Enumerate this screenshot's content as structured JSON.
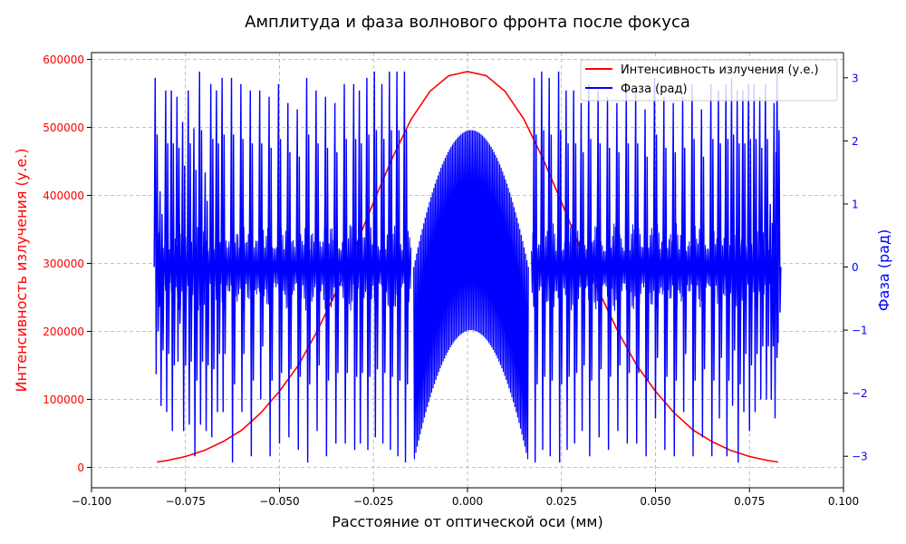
{
  "chart_data": {
    "type": "line",
    "title": "Амплитуда и фаза волнового фронта после фокуса",
    "xlabel": "Расстояние от оптической оси (мм)",
    "ylabel": "Интенсивность излучения (у.е.)",
    "y2label": "Фаза (рад)",
    "xlim": [
      -0.1,
      0.1
    ],
    "ylim": [
      -30000,
      610000
    ],
    "y2lim": [
      -3.5,
      3.4
    ],
    "grid": true,
    "legend_position": "top-right",
    "x_ticks": [
      -0.1,
      -0.075,
      -0.05,
      -0.025,
      0.0,
      0.025,
      0.05,
      0.075,
      0.1
    ],
    "x_tick_labels": [
      "−0.100",
      "−0.075",
      "−0.050",
      "−0.025",
      "0.000",
      "0.025",
      "0.050",
      "0.075",
      "0.100"
    ],
    "y_ticks": [
      0,
      100000,
      200000,
      300000,
      400000,
      500000,
      600000
    ],
    "y_tick_labels": [
      "0",
      "100000",
      "200000",
      "300000",
      "400000",
      "500000",
      "600000"
    ],
    "y2_ticks": [
      -3,
      -2,
      -1,
      0,
      1,
      2,
      3
    ],
    "y2_tick_labels": [
      "−3",
      "−2",
      "−1",
      "0",
      "1",
      "2",
      "3"
    ],
    "x_range_data": [
      -0.0825,
      0.0825
    ],
    "series": [
      {
        "name": "Интенсивность излучения (у.е.)",
        "axis": "left",
        "color": "#ff0000",
        "x": [
          -0.0825,
          -0.08,
          -0.075,
          -0.07,
          -0.065,
          -0.06,
          -0.055,
          -0.05,
          -0.045,
          -0.04,
          -0.035,
          -0.03,
          -0.025,
          -0.02,
          -0.015,
          -0.01,
          -0.005,
          0.0,
          0.005,
          0.01,
          0.015,
          0.02,
          0.025,
          0.03,
          0.035,
          0.04,
          0.045,
          0.05,
          0.055,
          0.06,
          0.065,
          0.07,
          0.075,
          0.08,
          0.0825
        ],
        "values": [
          8000,
          10000,
          16000,
          25000,
          38000,
          55000,
          80000,
          112000,
          150000,
          200000,
          258000,
          322000,
          390000,
          455000,
          512000,
          553000,
          576000,
          582000,
          576000,
          553000,
          512000,
          455000,
          390000,
          322000,
          258000,
          200000,
          150000,
          112000,
          80000,
          55000,
          38000,
          25000,
          16000,
          10000,
          8000
        ]
      },
      {
        "name": "Фаза (рад)",
        "axis": "right",
        "color": "#0000ff",
        "center_envelope": {
          "x_range": [
            -0.0143,
            0.0162
          ],
          "upper_peak": 2.17,
          "upper_edge": 0.0,
          "lower_peak": -1.0,
          "lower_edge": -3.1
        },
        "spikes": [
          {
            "x": -0.0828,
            "top": 3.0,
            "bottom": -1.7
          },
          {
            "x": -0.0815,
            "top": 1.2,
            "bottom": -2.2
          },
          {
            "x": -0.08,
            "top": 2.8,
            "bottom": -2.3
          },
          {
            "x": -0.0785,
            "top": 2.8,
            "bottom": -2.6
          },
          {
            "x": -0.077,
            "top": 2.7,
            "bottom": -1.5
          },
          {
            "x": -0.0755,
            "top": 2.3,
            "bottom": -2.6
          },
          {
            "x": -0.074,
            "top": 2.8,
            "bottom": -2.5
          },
          {
            "x": -0.0725,
            "top": 2.2,
            "bottom": -3.0
          },
          {
            "x": -0.071,
            "top": 3.1,
            "bottom": -2.5
          },
          {
            "x": -0.0695,
            "top": 1.5,
            "bottom": -2.6
          },
          {
            "x": -0.068,
            "top": 2.9,
            "bottom": -2.7
          },
          {
            "x": -0.0665,
            "top": 2.8,
            "bottom": -2.3
          },
          {
            "x": -0.065,
            "top": 3.0,
            "bottom": -2.3
          },
          {
            "x": -0.0625,
            "top": 3.0,
            "bottom": -3.1
          },
          {
            "x": -0.06,
            "top": 2.9,
            "bottom": -2.3
          },
          {
            "x": -0.0575,
            "top": 2.8,
            "bottom": -3.0
          },
          {
            "x": -0.055,
            "top": 2.8,
            "bottom": -2.1
          },
          {
            "x": -0.0525,
            "top": 2.7,
            "bottom": -3.0
          },
          {
            "x": -0.05,
            "top": 2.9,
            "bottom": -2.8
          },
          {
            "x": -0.0475,
            "top": 2.6,
            "bottom": -2.7
          },
          {
            "x": -0.045,
            "top": 2.5,
            "bottom": -2.9
          },
          {
            "x": -0.0425,
            "top": 3.0,
            "bottom": -3.1
          },
          {
            "x": -0.04,
            "top": 2.8,
            "bottom": -2.6
          },
          {
            "x": -0.0375,
            "top": 2.7,
            "bottom": -3.0
          },
          {
            "x": -0.035,
            "top": 2.6,
            "bottom": -2.8
          },
          {
            "x": -0.0325,
            "top": 2.9,
            "bottom": -2.8
          },
          {
            "x": -0.03,
            "top": 2.9,
            "bottom": -2.9
          },
          {
            "x": -0.0285,
            "top": 2.8,
            "bottom": -2.8
          },
          {
            "x": -0.0265,
            "top": 3.0,
            "bottom": -2.9
          },
          {
            "x": -0.0245,
            "top": 3.1,
            "bottom": -2.7
          },
          {
            "x": -0.0225,
            "top": 2.9,
            "bottom": -2.8
          },
          {
            "x": -0.0205,
            "top": 3.1,
            "bottom": -2.9
          },
          {
            "x": -0.0185,
            "top": 3.1,
            "bottom": -3.0
          },
          {
            "x": -0.0165,
            "top": 3.1,
            "bottom": -3.1
          },
          {
            "x": 0.018,
            "top": 3.0,
            "bottom": -3.1
          },
          {
            "x": 0.02,
            "top": 3.1,
            "bottom": -2.9
          },
          {
            "x": 0.022,
            "top": 3.0,
            "bottom": -3.0
          },
          {
            "x": 0.0245,
            "top": 3.1,
            "bottom": -3.1
          },
          {
            "x": 0.0265,
            "top": 2.8,
            "bottom": -2.9
          },
          {
            "x": 0.0285,
            "top": 2.8,
            "bottom": -2.8
          },
          {
            "x": 0.0305,
            "top": 2.6,
            "bottom": -2.6
          },
          {
            "x": 0.0325,
            "top": 2.9,
            "bottom": -3.0
          },
          {
            "x": 0.035,
            "top": 2.8,
            "bottom": -2.7
          },
          {
            "x": 0.0375,
            "top": 2.7,
            "bottom": -2.9
          },
          {
            "x": 0.04,
            "top": 2.6,
            "bottom": -2.6
          },
          {
            "x": 0.0425,
            "top": 2.8,
            "bottom": -2.8
          },
          {
            "x": 0.045,
            "top": 2.8,
            "bottom": -2.8
          },
          {
            "x": 0.0475,
            "top": 2.5,
            "bottom": -3.0
          },
          {
            "x": 0.05,
            "top": 3.0,
            "bottom": -2.4
          },
          {
            "x": 0.0525,
            "top": 2.7,
            "bottom": -2.9
          },
          {
            "x": 0.055,
            "top": 2.6,
            "bottom": -3.0
          },
          {
            "x": 0.0575,
            "top": 2.7,
            "bottom": -2.3
          },
          {
            "x": 0.06,
            "top": 2.9,
            "bottom": -3.0
          },
          {
            "x": 0.0625,
            "top": 2.5,
            "bottom": -2.7
          },
          {
            "x": 0.065,
            "top": 2.9,
            "bottom": -3.0
          },
          {
            "x": 0.067,
            "top": 2.8,
            "bottom": -2.4
          },
          {
            "x": 0.069,
            "top": 2.9,
            "bottom": -3.0
          },
          {
            "x": 0.0705,
            "top": 3.0,
            "bottom": -2.2
          },
          {
            "x": 0.072,
            "top": 2.8,
            "bottom": -3.1
          },
          {
            "x": 0.0735,
            "top": 2.8,
            "bottom": -2.3
          },
          {
            "x": 0.075,
            "top": 2.9,
            "bottom": -2.6
          },
          {
            "x": 0.0765,
            "top": 2.9,
            "bottom": -2.3
          },
          {
            "x": 0.078,
            "top": 2.7,
            "bottom": -2.1
          },
          {
            "x": 0.0795,
            "top": 2.9,
            "bottom": -2.1
          },
          {
            "x": 0.0808,
            "top": 1.0,
            "bottom": -2.1
          },
          {
            "x": 0.0818,
            "top": 2.6,
            "bottom": -2.4
          },
          {
            "x": 0.0826,
            "top": 3.1,
            "bottom": -1.2
          }
        ]
      }
    ]
  }
}
